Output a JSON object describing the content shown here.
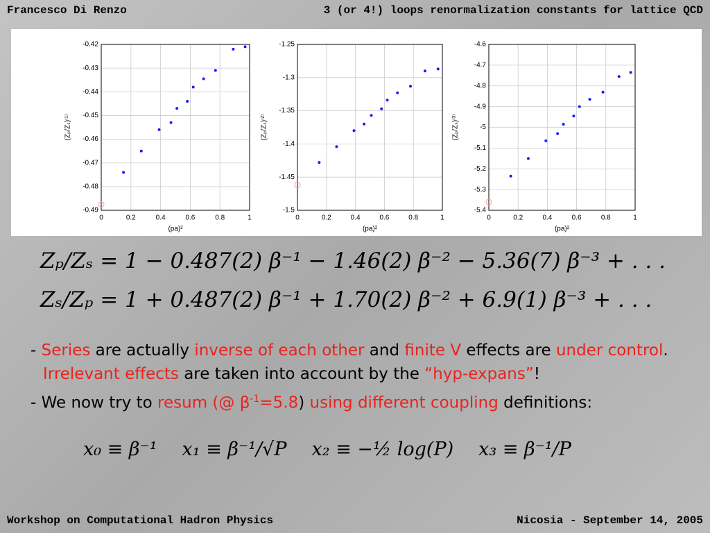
{
  "header": {
    "author": "Francesco Di Renzo",
    "title": "3 (or 4!) loops renormalization constants for lattice QCD"
  },
  "chart_data": [
    {
      "type": "scatter",
      "xlabel": "(pa)²",
      "ylabel": "(Zₚ/Zₛ)⁽¹⁾",
      "xlim": [
        0,
        1
      ],
      "ylim": [
        -0.49,
        -0.42
      ],
      "xticks": [
        0,
        0.2,
        0.4,
        0.6,
        0.8,
        1
      ],
      "yticks": [
        -0.49,
        -0.48,
        -0.47,
        -0.46,
        -0.45,
        -0.44,
        -0.43,
        -0.42
      ],
      "grid": true,
      "series": [
        {
          "color": "#1a1aff",
          "x": [
            0.15,
            0.27,
            0.39,
            0.47,
            0.51,
            0.58,
            0.62,
            0.69,
            0.77,
            0.89,
            0.97
          ],
          "values": [
            -0.474,
            -0.465,
            -0.456,
            -0.453,
            -0.447,
            -0.444,
            -0.438,
            -0.4345,
            -0.431,
            -0.422,
            -0.421
          ]
        },
        {
          "color": "#ff9999",
          "x": [
            0
          ],
          "values": [
            -0.4875
          ]
        }
      ]
    },
    {
      "type": "scatter",
      "xlabel": "(pa)²",
      "ylabel": "(Zₚ/Zₛ)⁽²⁾",
      "xlim": [
        0,
        1
      ],
      "ylim": [
        -1.5,
        -1.25
      ],
      "xticks": [
        0,
        0.2,
        0.4,
        0.6,
        0.8,
        1
      ],
      "yticks": [
        -1.5,
        -1.45,
        -1.4,
        -1.35,
        -1.3,
        -1.25
      ],
      "grid": true,
      "series": [
        {
          "color": "#1a1aff",
          "x": [
            0.15,
            0.27,
            0.39,
            0.46,
            0.51,
            0.58,
            0.62,
            0.69,
            0.78,
            0.88,
            0.97
          ],
          "values": [
            -1.428,
            -1.404,
            -1.38,
            -1.37,
            -1.357,
            -1.347,
            -1.334,
            -1.323,
            -1.313,
            -1.29,
            -1.287
          ]
        },
        {
          "color": "#ff9999",
          "x": [
            0
          ],
          "values": [
            -1.462
          ]
        }
      ]
    },
    {
      "type": "scatter",
      "xlabel": "(pa)²",
      "ylabel": "(Zₚ/Zₛ)⁽³⁾",
      "xlim": [
        0,
        1
      ],
      "ylim": [
        -5.4,
        -4.6
      ],
      "xticks": [
        0,
        0.2,
        0.4,
        0.6,
        0.8,
        1
      ],
      "yticks": [
        -5.4,
        -5.3,
        -5.2,
        -5.1,
        -5,
        -4.9,
        -4.8,
        -4.7,
        -4.6
      ],
      "grid": true,
      "series": [
        {
          "color": "#1a1aff",
          "x": [
            0.15,
            0.27,
            0.39,
            0.47,
            0.51,
            0.58,
            0.62,
            0.69,
            0.78,
            0.89,
            0.97
          ],
          "values": [
            -5.235,
            -5.15,
            -5.065,
            -5.03,
            -4.985,
            -4.945,
            -4.9,
            -4.865,
            -4.83,
            -4.755,
            -4.735
          ]
        },
        {
          "color": "#ff9999",
          "x": [
            0
          ],
          "values": [
            -5.36
          ]
        }
      ]
    }
  ],
  "formulas": [
    "Zₚ/Zₛ = 1 − 0.487(2) β⁻¹ − 1.46(2) β⁻² − 5.36(7) β⁻³ + . . .",
    "Zₛ/Zₚ = 1 + 0.487(2) β⁻¹ + 1.70(2) β⁻² + 6.9(1) β⁻³ + . . ."
  ],
  "bullets": [
    {
      "segments": [
        {
          "text": "- "
        },
        {
          "text": "Series",
          "highlight": true
        },
        {
          "text": " are actually "
        },
        {
          "text": "inverse of each other",
          "highlight": true
        },
        {
          "text": " and "
        },
        {
          "text": "finite V",
          "highlight": true
        },
        {
          "text": " effects are "
        },
        {
          "text": "under control",
          "highlight": true
        },
        {
          "text": ". "
        },
        {
          "text": "Irrelevant effects",
          "highlight": true
        },
        {
          "text": " are taken into account by the "
        },
        {
          "text": "“hyp-expans”",
          "highlight": true
        },
        {
          "text": "!"
        }
      ]
    },
    {
      "segments": [
        {
          "text": "- We now try to "
        },
        {
          "text": "resum (@ β",
          "highlight": true
        },
        {
          "text": "-1",
          "highlight": true,
          "sup": true
        },
        {
          "text": "=5.8",
          "highlight": true
        },
        {
          "text": ") "
        },
        {
          "text": "using different coupling",
          "highlight": true
        },
        {
          "text": " definitions:"
        }
      ]
    }
  ],
  "definitions": [
    "x₀ ≡ β⁻¹",
    "x₁ ≡ β⁻¹/√P",
    "x₂ ≡ −½ log(P)",
    "x₃ ≡ β⁻¹/P"
  ],
  "footer": {
    "event": "Workshop on Computational Hadron Physics",
    "place_date": "Nicosia - September 14, 2005"
  }
}
